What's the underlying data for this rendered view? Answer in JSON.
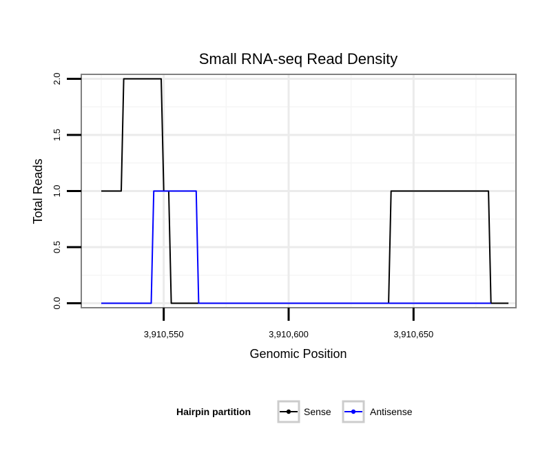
{
  "chart_data": {
    "type": "line",
    "title": "Small RNA-seq Read Density",
    "xlabel": "Genomic Position",
    "ylabel": "Total Reads",
    "xlim": [
      3910517,
      3910691
    ],
    "ylim": [
      -0.04,
      2.04
    ],
    "x_ticks": [
      3910550,
      3910600,
      3910650
    ],
    "x_tick_labels": [
      "3,910,550",
      "3,910,600",
      "3,910,650"
    ],
    "y_ticks": [
      0.0,
      0.5,
      1.0,
      1.5,
      2.0
    ],
    "y_tick_labels": [
      "0.0",
      "0.5",
      "1.0",
      "1.5",
      "2.0"
    ],
    "grid": true,
    "legend": {
      "title": "Hairpin partition",
      "position": "bottom"
    },
    "series": [
      {
        "name": "Sense",
        "color": "#000000",
        "x": [
          3910525,
          3910533,
          3910534,
          3910549,
          3910550,
          3910552,
          3910553,
          3910565,
          3910600,
          3910640,
          3910641,
          3910680,
          3910681,
          3910688
        ],
        "y": [
          1,
          1,
          2,
          2,
          1,
          1,
          0,
          0,
          0,
          0,
          1,
          1,
          0,
          0
        ]
      },
      {
        "name": "Antisense",
        "color": "#0000ff",
        "x": [
          3910525,
          3910545,
          3910546,
          3910563,
          3910564,
          3910600,
          3910640,
          3910681
        ],
        "y": [
          0,
          0,
          1,
          1,
          0,
          0,
          0,
          0
        ]
      }
    ]
  }
}
